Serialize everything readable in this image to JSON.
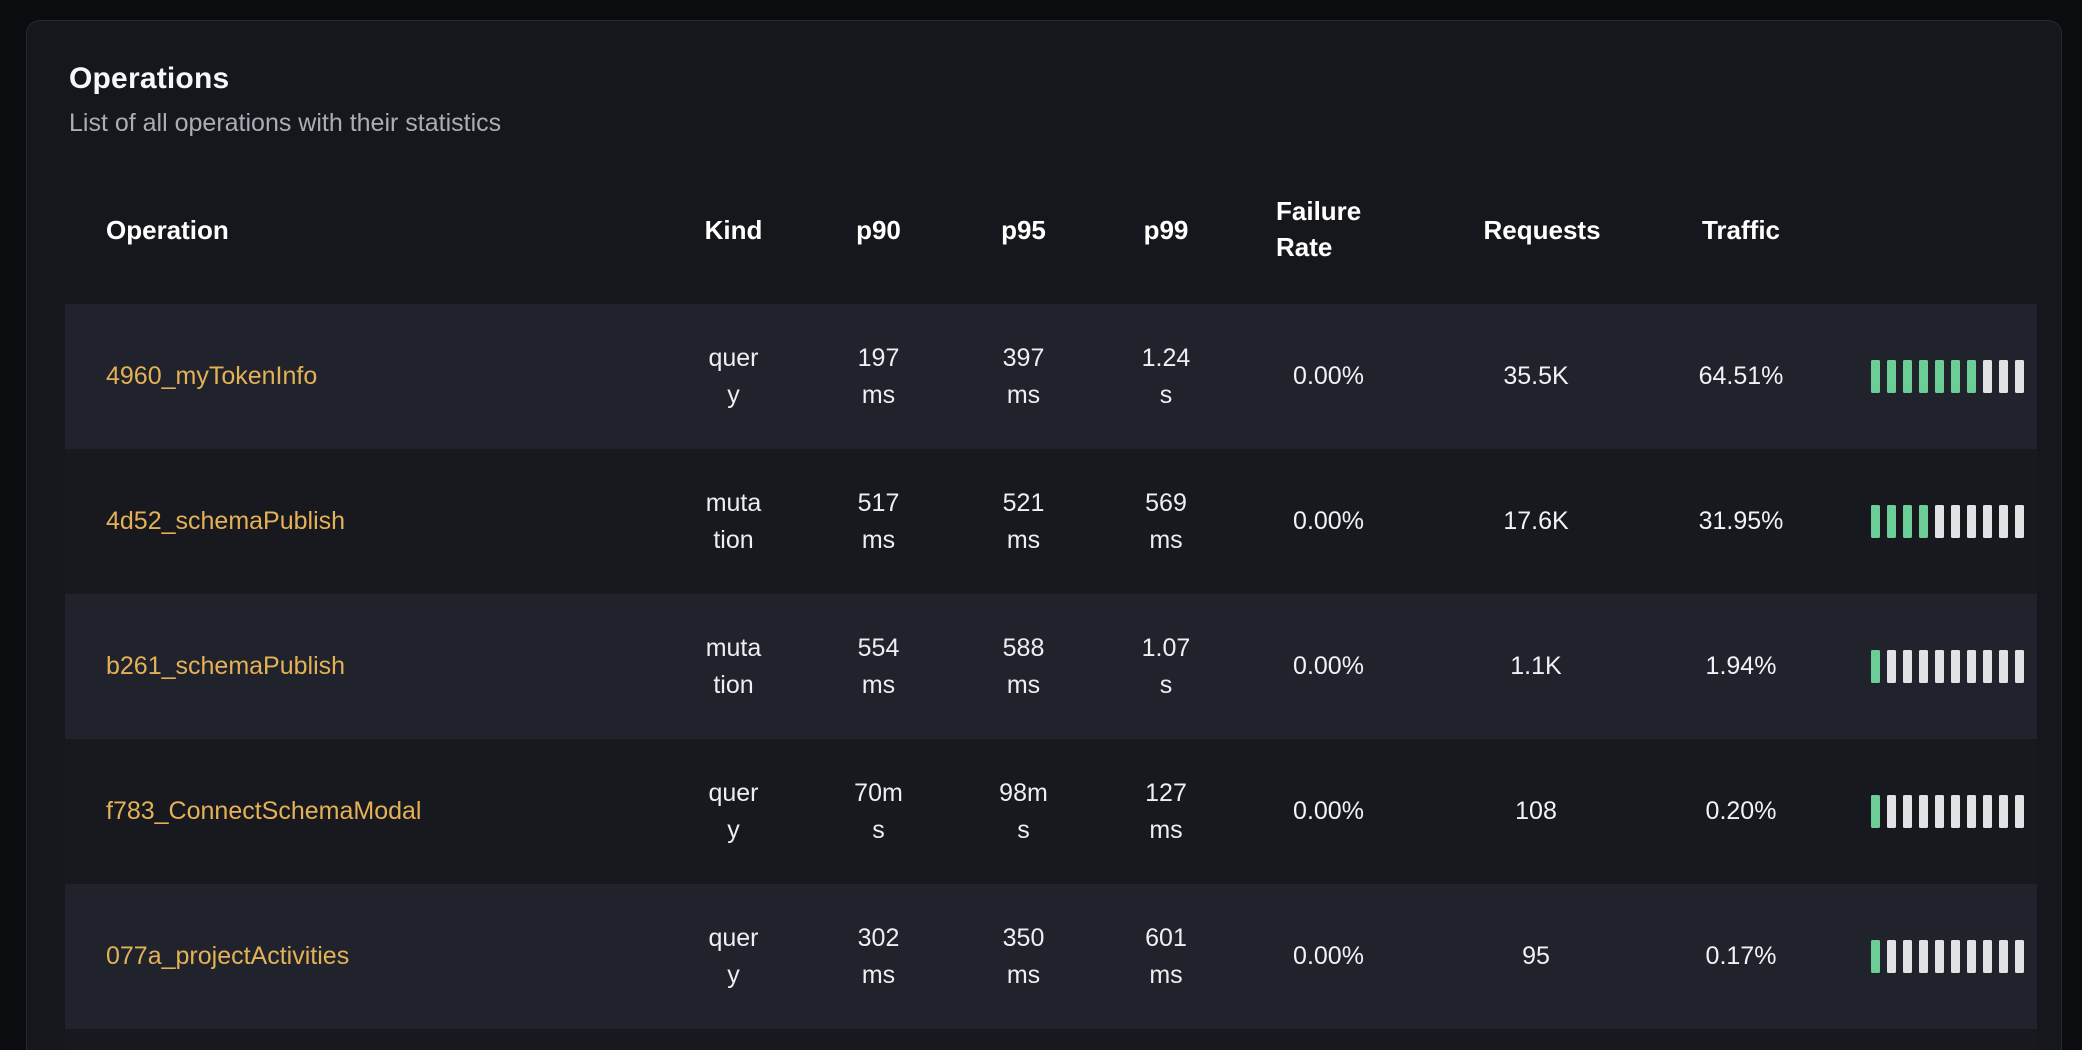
{
  "page": {
    "title": "Operations",
    "subtitle": "List of all operations with their statistics"
  },
  "table": {
    "columns": [
      {
        "key": "operation",
        "label": "Operation"
      },
      {
        "key": "kind",
        "label": "Kind"
      },
      {
        "key": "p90",
        "label": "p90"
      },
      {
        "key": "p95",
        "label": "p95"
      },
      {
        "key": "p99",
        "label": "p99"
      },
      {
        "key": "failure_rate",
        "label": "Failure Rate"
      },
      {
        "key": "requests",
        "label": "Requests"
      },
      {
        "key": "traffic",
        "label": "Traffic"
      }
    ],
    "rows": [
      {
        "operation": "4960_myTokenInfo",
        "kind": "query",
        "p90": "197 ms",
        "p95": "397 ms",
        "p99": "1.24 s",
        "failure_rate": "0.00%",
        "requests": "35.5K",
        "traffic": "64.51%",
        "traffic_bars_filled": 7,
        "traffic_bars_total": 10
      },
      {
        "operation": "4d52_schemaPublish",
        "kind": "mutation",
        "p90": "517 ms",
        "p95": "521 ms",
        "p99": "569 ms",
        "failure_rate": "0.00%",
        "requests": "17.6K",
        "traffic": "31.95%",
        "traffic_bars_filled": 4,
        "traffic_bars_total": 10
      },
      {
        "operation": "b261_schemaPublish",
        "kind": "mutation",
        "p90": "554 ms",
        "p95": "588 ms",
        "p99": "1.07 s",
        "failure_rate": "0.00%",
        "requests": "1.1K",
        "traffic": "1.94%",
        "traffic_bars_filled": 1,
        "traffic_bars_total": 10
      },
      {
        "operation": "f783_ConnectSchemaModal",
        "kind": "query",
        "p90": "70ms",
        "p95": "98ms",
        "p99": "127 ms",
        "failure_rate": "0.00%",
        "requests": "108",
        "traffic": "0.20%",
        "traffic_bars_filled": 1,
        "traffic_bars_total": 10
      },
      {
        "operation": "077a_projectActivities",
        "kind": "query",
        "p90": "302 ms",
        "p95": "350 ms",
        "p99": "601 ms",
        "failure_rate": "0.00%",
        "requests": "95",
        "traffic": "0.17%",
        "traffic_bars_filled": 1,
        "traffic_bars_total": 10
      }
    ]
  },
  "colors": {
    "accent_link": "#e4b157",
    "bar_filled": "#6ccd96",
    "bar_empty": "#e1e2e4",
    "row_odd_bg": "#20232c",
    "row_even_bg": "#17191f",
    "card_bg": "#15171c",
    "page_bg": "#0a0c0f"
  }
}
